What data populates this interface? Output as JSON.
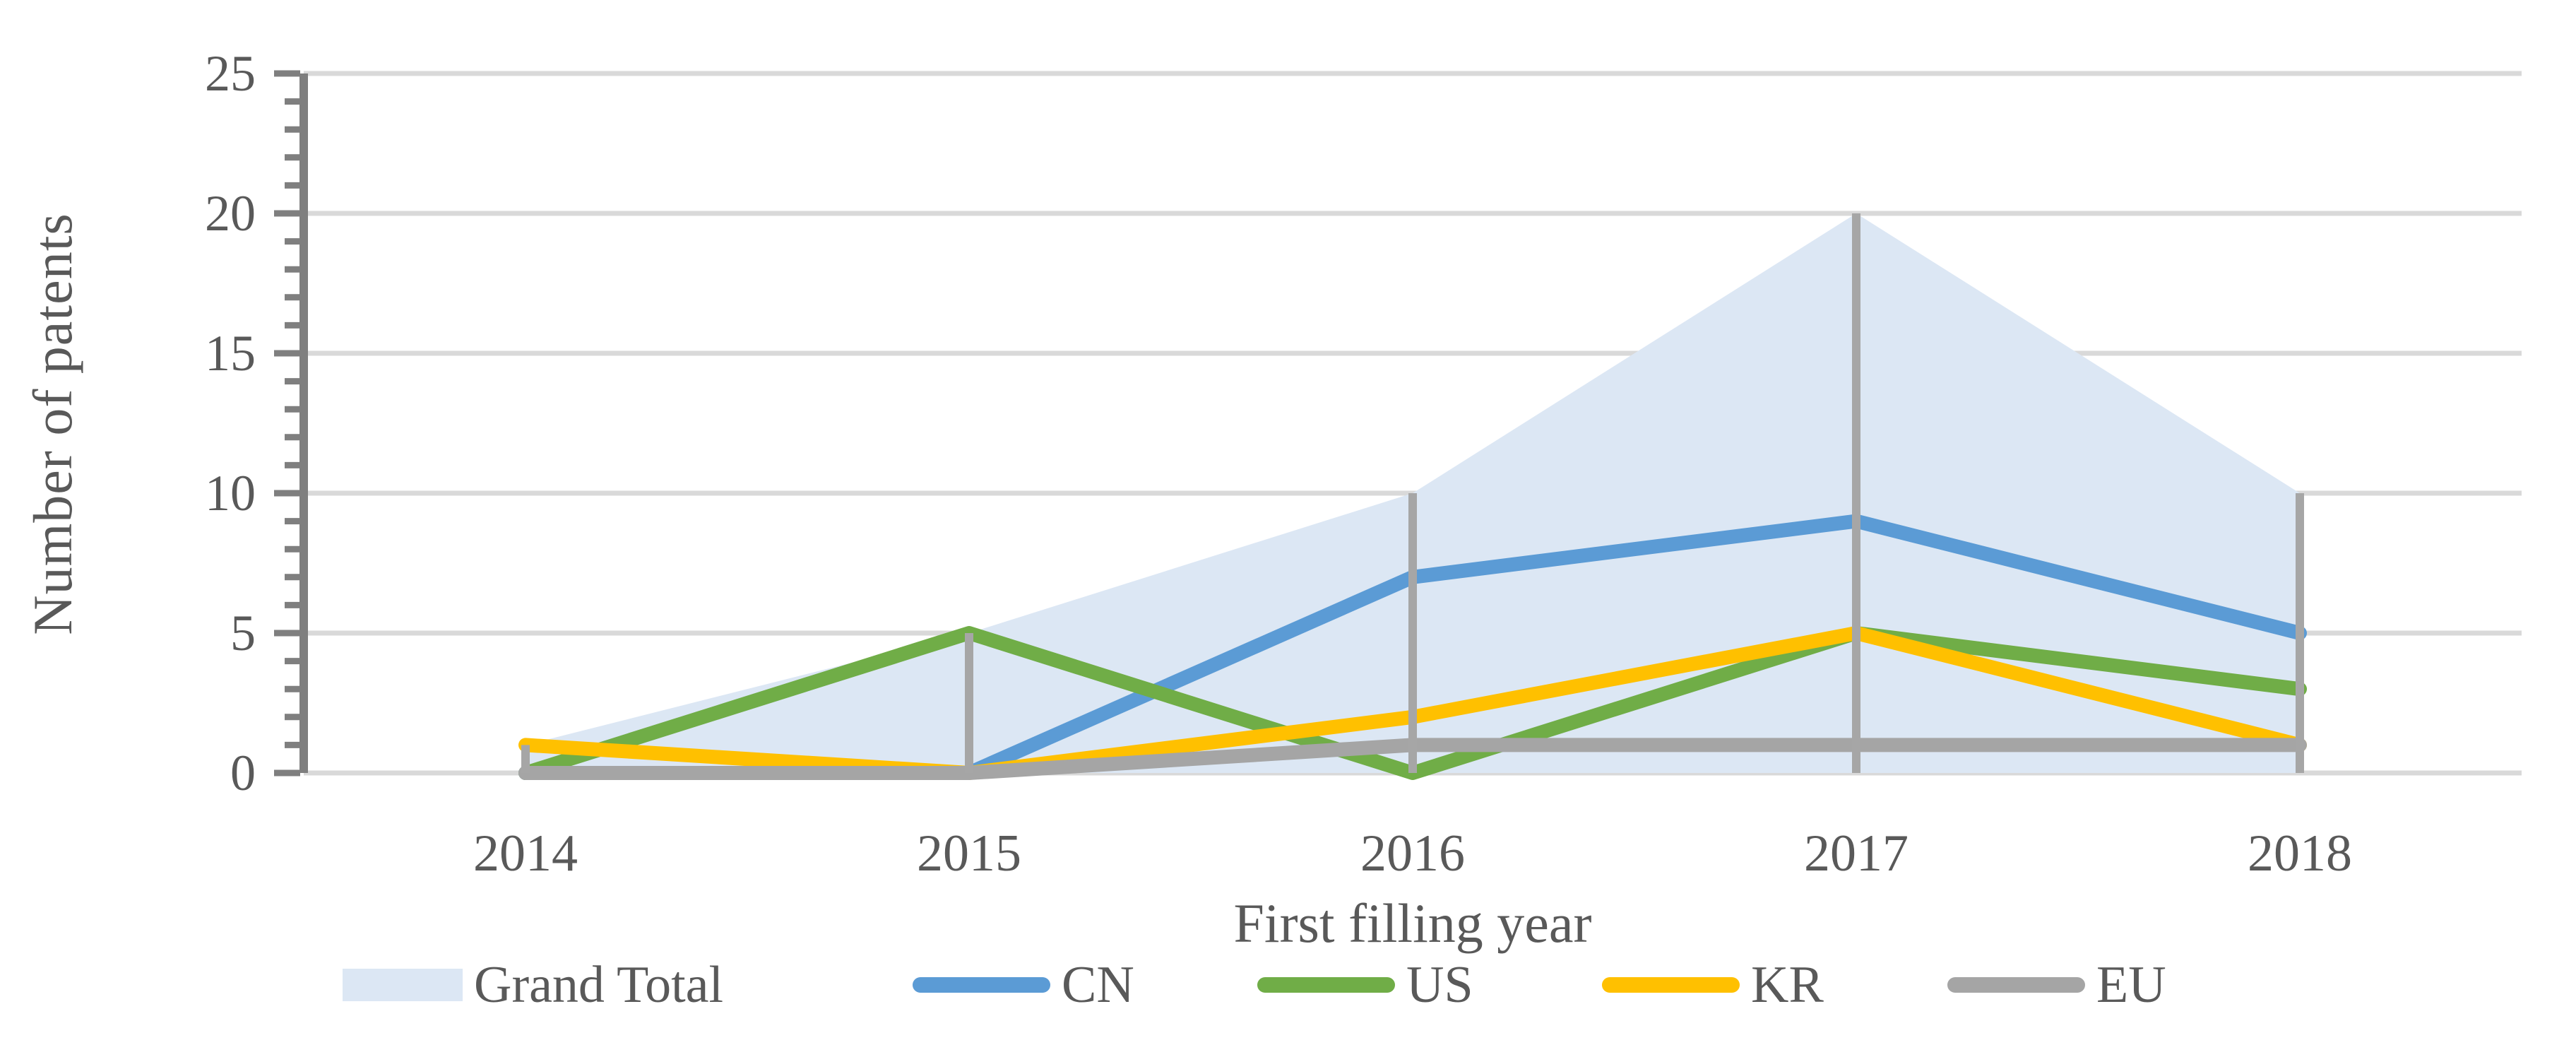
{
  "chart_data": {
    "type": "area+line",
    "xlabel": "First filling year",
    "ylabel": "Number of patents",
    "categories": [
      "2014",
      "2015",
      "2016",
      "2017",
      "2018"
    ],
    "y_ticks": [
      0,
      5,
      10,
      15,
      20,
      25
    ],
    "ylim": [
      0,
      25
    ],
    "y_minor_tick_step": 1,
    "grid": true,
    "legend_position": "bottom",
    "series": [
      {
        "name": "Grand Total",
        "type": "area",
        "color": "#DCE7F4",
        "values": [
          1,
          5,
          10,
          20,
          10
        ],
        "drop_lines": true
      },
      {
        "name": "CN",
        "type": "line",
        "color": "#5B9BD5",
        "values": [
          0,
          0,
          7,
          9,
          5
        ]
      },
      {
        "name": "US",
        "type": "line",
        "color": "#70AD47",
        "values": [
          0,
          5,
          0,
          5,
          3
        ]
      },
      {
        "name": "KR",
        "type": "line",
        "color": "#FFC000",
        "values": [
          1,
          0,
          2,
          5,
          1
        ]
      },
      {
        "name": "EU",
        "type": "line",
        "color": "#A5A5A5",
        "values": [
          0,
          0,
          1,
          1,
          1
        ]
      }
    ]
  },
  "axes": {
    "x_title": "First filling year",
    "y_title": "Number of patents",
    "y_tick_labels": [
      "0",
      "5",
      "10",
      "15",
      "20",
      "25"
    ]
  },
  "legend": {
    "items": [
      {
        "label": "Grand Total",
        "swatch": "area",
        "color": "#DCE7F4"
      },
      {
        "label": "CN",
        "swatch": "line",
        "color": "#5B9BD5"
      },
      {
        "label": "US",
        "swatch": "line",
        "color": "#70AD47"
      },
      {
        "label": "KR",
        "swatch": "line",
        "color": "#FFC000"
      },
      {
        "label": "EU",
        "swatch": "line",
        "color": "#A5A5A5"
      }
    ]
  },
  "colors": {
    "background": "#FFFFFF",
    "gridline": "#D9D9D9",
    "axis_line": "#7F7F7F",
    "tick": "#7F7F7F",
    "drop_line": "#A6A6A6",
    "text": "#595959"
  }
}
